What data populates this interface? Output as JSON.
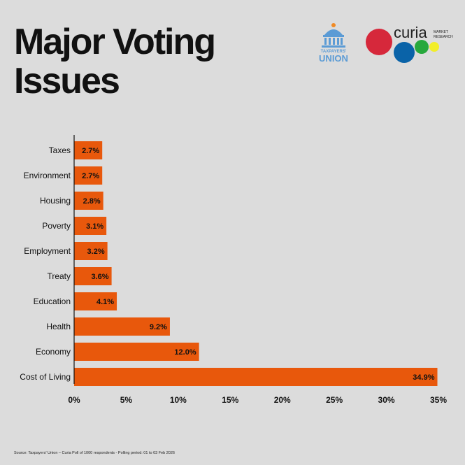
{
  "title": "Major Voting Issues",
  "logos": {
    "taxpayers_union_line1": "TAXPAYERS'",
    "taxpayers_union_line2": "UNION",
    "curia_name": "curia",
    "curia_sub1": "MARKET",
    "curia_sub2": "RESEARCH"
  },
  "source": "Source: Taxpayers' Union – Curia Poll of 1000 respondents - Polling period: 01 to 03 Feb 2026",
  "colors": {
    "bar": "#e8580c",
    "background": "#dcdcdc",
    "tu_blue": "#5b9bd5",
    "curia_red": "#d6283b",
    "curia_blue": "#0a63a8",
    "curia_green": "#27a83c",
    "curia_yellow": "#f2ee2a"
  },
  "chart_data": {
    "type": "bar",
    "orientation": "horizontal",
    "categories": [
      "Taxes",
      "Environment",
      "Housing",
      "Poverty",
      "Employment",
      "Treaty",
      "Education",
      "Health",
      "Economy",
      "Cost of Living"
    ],
    "values": [
      2.7,
      2.7,
      2.8,
      3.1,
      3.2,
      3.6,
      4.1,
      9.2,
      12.0,
      34.9
    ],
    "data_labels": [
      "2.7%",
      "2.7%",
      "2.8%",
      "3.1%",
      "3.2%",
      "3.6%",
      "4.1%",
      "9.2%",
      "12.0%",
      "34.9%"
    ],
    "xlim": [
      0,
      35
    ],
    "xticks": [
      0,
      5,
      10,
      15,
      20,
      25,
      30,
      35
    ],
    "xtick_labels": [
      "0%",
      "5%",
      "10%",
      "15%",
      "20%",
      "25%",
      "30%",
      "35%"
    ],
    "grid": false,
    "legend": "none"
  }
}
